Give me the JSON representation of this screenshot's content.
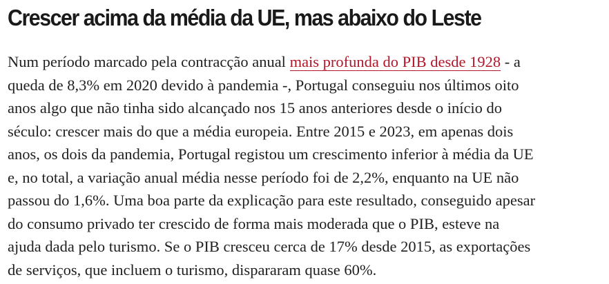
{
  "article": {
    "headline": "Crescer acima da média da UE, mas abaixo do Leste",
    "paragraph": {
      "line1_before_link": "Num período marcado pela contracção anual ",
      "link_text": "mais profunda do PIB desde 1928",
      "line1_after_link": " - a",
      "line2": "queda de 8,3% em 2020 devido à pandemia -, Portugal conseguiu nos últimos oito",
      "line3": "anos algo que não tinha sido alcançado nos 15 anos anteriores desde o início do",
      "line4": "século: crescer mais do que a média europeia. Entre 2015 e 2023, em apenas dois",
      "line5": "anos, os dois da pandemia, Portugal registou um crescimento inferior à média da UE",
      "line6": "e, no total, a variação anual média nesse período foi de 2,2%, enquanto na UE não",
      "line7": "passou do 1,6%. Uma boa parte da explicação para este resultado, conseguido apesar",
      "line8": "do consumo privado ter crescido de forma mais moderada que o PIB, esteve na",
      "line9": "ajuda dada pelo turismo. Se o PIB cresceu cerca de 17% desde 2015, as exportações",
      "line10": "de serviços, que incluem o turismo, dispararam quase 60%."
    }
  },
  "colors": {
    "text": "#1f1f1f",
    "headline": "#1a1a1a",
    "link": "#b0172b",
    "background": "#ffffff"
  }
}
